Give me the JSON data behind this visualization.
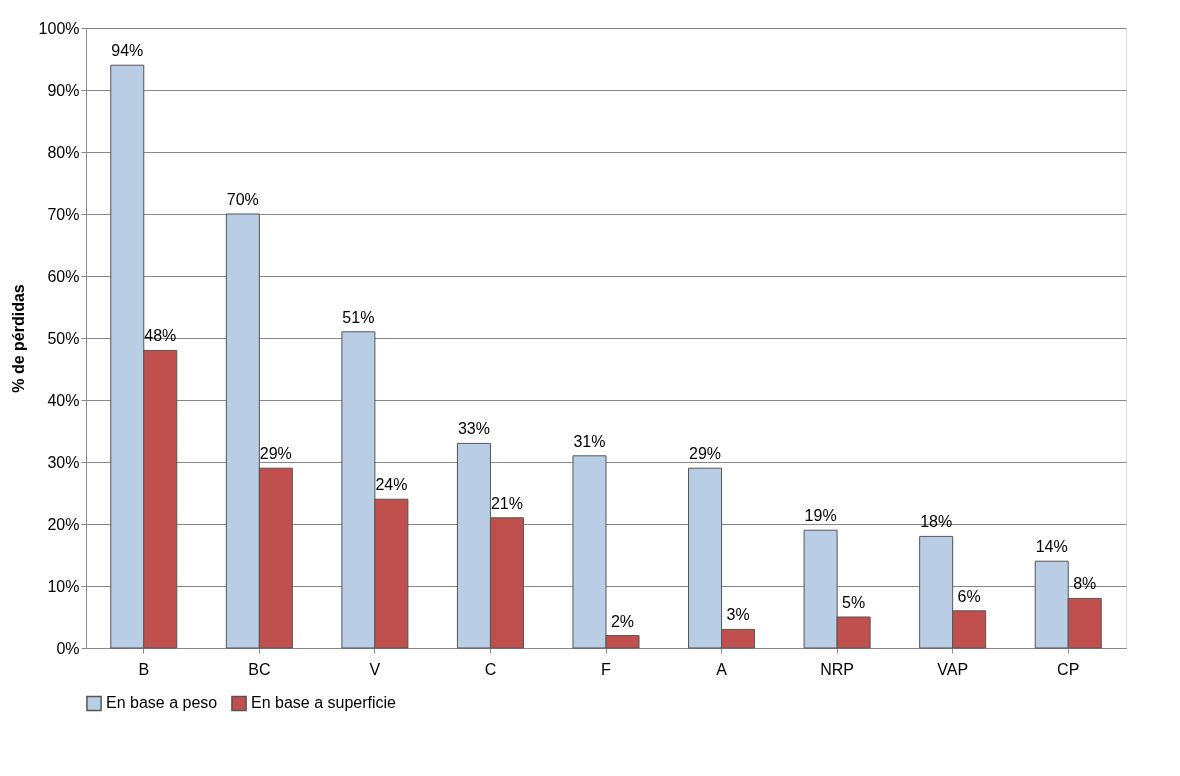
{
  "chart_data": {
    "type": "bar",
    "ylabel": "% de pérdidas",
    "categories": [
      "B",
      "BC",
      "V",
      "C",
      "F",
      "A",
      "NRP",
      "VAP",
      "CP"
    ],
    "series": [
      {
        "name": "En base a peso",
        "color": "#b9cde5",
        "values": [
          94,
          70,
          51,
          33,
          31,
          29,
          19,
          18,
          14
        ],
        "value_labels": [
          "94%",
          "70%",
          "51%",
          "33%",
          "31%",
          "29%",
          "19%",
          "18%",
          "14%"
        ]
      },
      {
        "name": "En base a superficie",
        "color": "#c0504d",
        "values": [
          48,
          29,
          24,
          21,
          2,
          3,
          5,
          6,
          8
        ],
        "value_labels": [
          "48%",
          "29%",
          "24%",
          "21%",
          "2%",
          "3%",
          "5%",
          "6%",
          "8%"
        ]
      }
    ],
    "ylim": [
      0,
      100
    ],
    "yticks": [
      {
        "value": 0,
        "label": "0%"
      },
      {
        "value": 10,
        "label": "10%"
      },
      {
        "value": 20,
        "label": "20%"
      },
      {
        "value": 30,
        "label": "30%"
      },
      {
        "value": 40,
        "label": "40%"
      },
      {
        "value": 50,
        "label": "50%"
      },
      {
        "value": 60,
        "label": "60%"
      },
      {
        "value": 70,
        "label": "70%"
      },
      {
        "value": 80,
        "label": "80%"
      },
      {
        "value": 90,
        "label": "90%"
      },
      {
        "value": 100,
        "label": "100%"
      }
    ],
    "grid": "y",
    "legend": "bottom"
  }
}
